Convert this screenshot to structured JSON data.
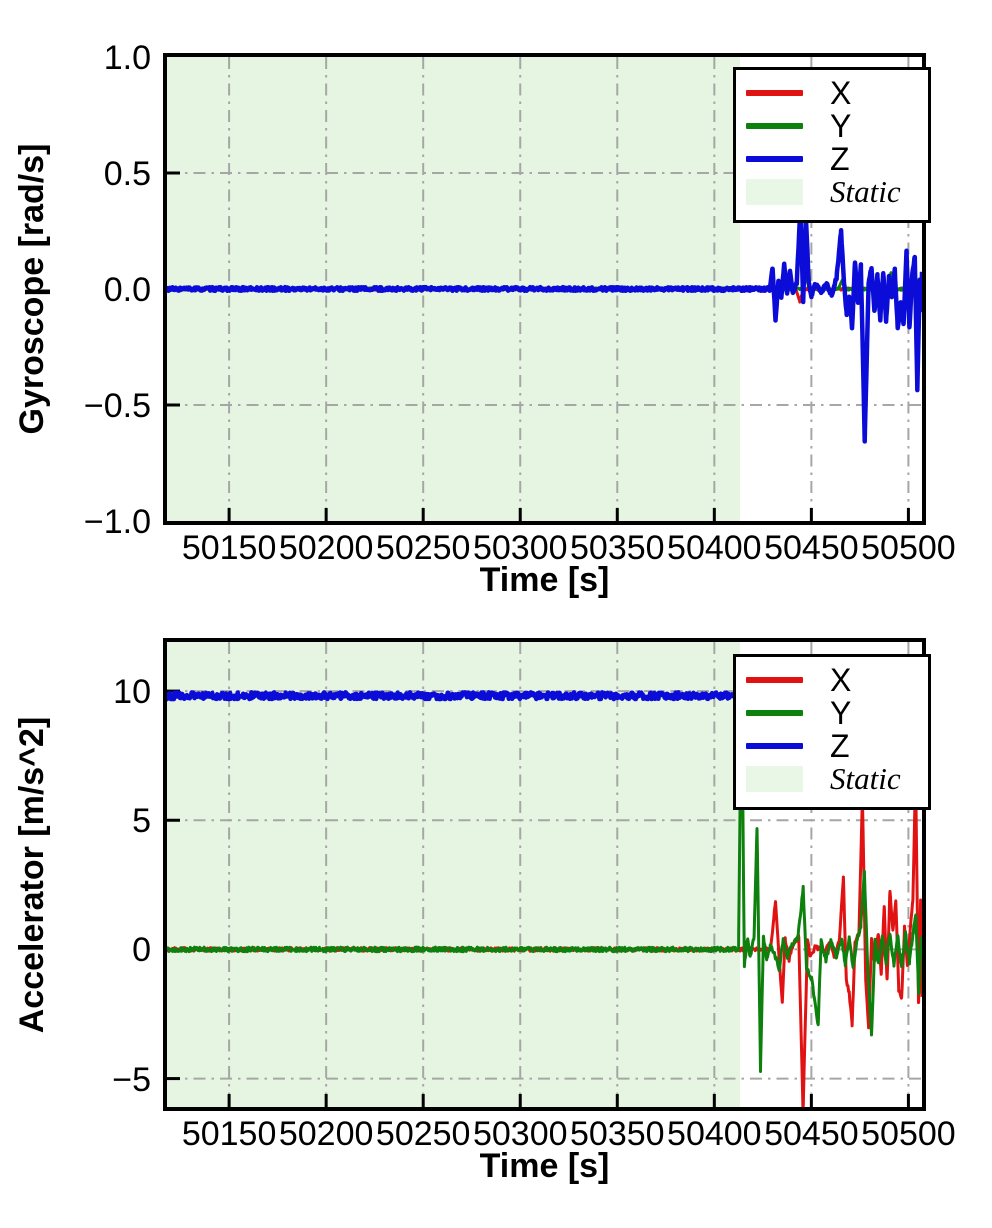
{
  "figure_background": "#ffffff",
  "colors": {
    "x_series": "#e01212",
    "y_series": "#0d800d",
    "z_series": "#0c0cd8",
    "static_fill": "#e6f5e2",
    "legend_static_fill": "#e9f7e6",
    "grid": "#a6a6a6",
    "spine": "#000000"
  },
  "legend": {
    "items": [
      {
        "label": "X",
        "swatch": "line",
        "color": "#e01212"
      },
      {
        "label": "Y",
        "swatch": "line",
        "color": "#0d800d"
      },
      {
        "label": "Z",
        "swatch": "line",
        "color": "#0c0cd8"
      },
      {
        "label": "Static",
        "swatch": "patch",
        "color": "#e9f7e6"
      }
    ],
    "position": "upper right"
  },
  "chart_data": [
    {
      "type": "line",
      "title": "",
      "xlabel": "Time [s]",
      "ylabel": "Gyroscope [rad/s]",
      "xlim": [
        50118,
        50507
      ],
      "ylim": [
        -1.0,
        1.0
      ],
      "xticks": [
        50150,
        50200,
        50250,
        50300,
        50350,
        50400,
        50450,
        50500
      ],
      "xtick_labels": [
        "50150",
        "50200",
        "50250",
        "50300",
        "50350",
        "50400",
        "50450",
        "50500"
      ],
      "yticks": [
        1.0,
        0.5,
        0.0,
        -0.5,
        -1.0
      ],
      "ytick_labels": [
        "1.0",
        "0.5",
        "0.0",
        "−0.5",
        "−1.0"
      ],
      "grid": true,
      "grid_style": "dash-dot",
      "legend_position": "upper right",
      "static_region": {
        "start": 50118,
        "end": 50413,
        "label": "Static"
      },
      "series": [
        {
          "name": "X",
          "color": "#e01212",
          "width": 3,
          "noise": 0.005,
          "seed": 11,
          "keypoints": [
            [
              50118,
              0
            ],
            [
              50442,
              0
            ],
            [
              50444,
              -0.055
            ],
            [
              50446,
              0
            ],
            [
              50489,
              0
            ],
            [
              50491,
              -0.035
            ],
            [
              50492.5,
              0
            ],
            [
              50507,
              0
            ]
          ]
        },
        {
          "name": "Y",
          "color": "#0d800d",
          "width": 3,
          "noise": 0.005,
          "seed": 22,
          "keypoints": [
            [
              50118,
              0
            ],
            [
              50445,
              0
            ],
            [
              50447,
              0.05
            ],
            [
              50449,
              0
            ],
            [
              50464,
              0
            ],
            [
              50466,
              0.04
            ],
            [
              50468,
              0
            ],
            [
              50489,
              0
            ],
            [
              50491,
              0.07
            ],
            [
              50493,
              0
            ],
            [
              50504,
              0
            ],
            [
              50505.5,
              0.04
            ],
            [
              50507,
              0.01
            ]
          ]
        },
        {
          "name": "Z",
          "color": "#0c0cd8",
          "width": 4.5,
          "noise": 0.008,
          "seed": 33,
          "keypoints": [
            [
              50118,
              0
            ],
            [
              50428.5,
              0
            ],
            [
              50430,
              0.09
            ],
            [
              50431.5,
              -0.13
            ],
            [
              50433,
              0.03
            ],
            [
              50434.5,
              -0.03
            ],
            [
              50436,
              0.11
            ],
            [
              50437.5,
              -0.02
            ],
            [
              50439,
              0.07
            ],
            [
              50440.5,
              -0.02
            ],
            [
              50442.5,
              0.03
            ],
            [
              50444.3,
              0.35
            ],
            [
              50445.8,
              -0.05
            ],
            [
              50447.2,
              0.31
            ],
            [
              50448.6,
              0.03
            ],
            [
              50450,
              -0.03
            ],
            [
              50452,
              0.02
            ],
            [
              50455,
              -0.01
            ],
            [
              50458,
              0.02
            ],
            [
              50460.5,
              -0.03
            ],
            [
              50463,
              0.05
            ],
            [
              50465.3,
              0.25
            ],
            [
              50466.8,
              0.03
            ],
            [
              50468.2,
              -0.11
            ],
            [
              50469.6,
              -0.03
            ],
            [
              50471,
              -0.17
            ],
            [
              50472.5,
              0.12
            ],
            [
              50474,
              -0.06
            ],
            [
              50475.5,
              0.1
            ],
            [
              50477.5,
              -0.65
            ],
            [
              50479.5,
              0.03
            ],
            [
              50481,
              0.09
            ],
            [
              50482.5,
              -0.1
            ],
            [
              50484,
              0.06
            ],
            [
              50485.5,
              -0.13
            ],
            [
              50487,
              0.07
            ],
            [
              50488.5,
              -0.14
            ],
            [
              50490,
              0.05
            ],
            [
              50491.5,
              -0.03
            ],
            [
              50493,
              0.08
            ],
            [
              50494.5,
              -0.17
            ],
            [
              50496,
              -0.06
            ],
            [
              50497.5,
              -0.15
            ],
            [
              50499,
              0.16
            ],
            [
              50500.5,
              -0.17
            ],
            [
              50502,
              0.06
            ],
            [
              50503.3,
              0.14
            ],
            [
              50504.6,
              -0.43
            ],
            [
              50505.8,
              0.03
            ],
            [
              50506.5,
              -0.09
            ],
            [
              50507,
              0.07
            ]
          ]
        }
      ]
    },
    {
      "type": "line",
      "title": "",
      "xlabel": "Time [s]",
      "ylabel": "Accelerator [m/s^2]",
      "xlim": [
        50118,
        50507
      ],
      "ylim": [
        -6.1,
        11.9
      ],
      "xticks": [
        50150,
        50200,
        50250,
        50300,
        50350,
        50400,
        50450,
        50500
      ],
      "xtick_labels": [
        "50150",
        "50200",
        "50250",
        "50300",
        "50350",
        "50400",
        "50450",
        "50500"
      ],
      "yticks": [
        10,
        5,
        0,
        -5
      ],
      "ytick_labels": [
        "10",
        "5",
        "0",
        "−5"
      ],
      "grid": true,
      "grid_style": "dash-dot",
      "legend_position": "upper right",
      "static_region": {
        "start": 50118,
        "end": 50413,
        "label": "Static"
      },
      "series": [
        {
          "name": "X",
          "color": "#e01212",
          "width": 3,
          "noise": 0.07,
          "seed": 44,
          "keypoints": [
            [
              50118,
              0
            ],
            [
              50429,
              0
            ],
            [
              50431.5,
              1.9
            ],
            [
              50433.5,
              -0.5
            ],
            [
              50435,
              -2.0
            ],
            [
              50436.5,
              0.4
            ],
            [
              50438.5,
              -0.4
            ],
            [
              50440.5,
              0.2
            ],
            [
              50443.5,
              0.5
            ],
            [
              50445.7,
              -6.3
            ],
            [
              50448,
              0.4
            ],
            [
              50449.5,
              -0.3
            ],
            [
              50452,
              0.1
            ],
            [
              50457,
              -0.1
            ],
            [
              50459.5,
              0.3
            ],
            [
              50462,
              -0.3
            ],
            [
              50464.5,
              0.4
            ],
            [
              50466.5,
              2.8
            ],
            [
              50468,
              -1.2
            ],
            [
              50469.5,
              -1.7
            ],
            [
              50471,
              -2.9
            ],
            [
              50472.5,
              0.3
            ],
            [
              50474.5,
              0.6
            ],
            [
              50476.3,
              5.9
            ],
            [
              50478,
              -1.1
            ],
            [
              50479.5,
              -3.1
            ],
            [
              50481,
              0.4
            ],
            [
              50482.5,
              -0.5
            ],
            [
              50484.5,
              0.6
            ],
            [
              50486,
              -0.9
            ],
            [
              50487.5,
              1.7
            ],
            [
              50489,
              -1.2
            ],
            [
              50490.5,
              2.3
            ],
            [
              50492,
              0.7
            ],
            [
              50493.5,
              1.9
            ],
            [
              50495,
              -1.6
            ],
            [
              50496.5,
              -1.9
            ],
            [
              50498,
              0.9
            ],
            [
              50499.5,
              -0.6
            ],
            [
              50501,
              0.8
            ],
            [
              50502.3,
              1.9
            ],
            [
              50503.7,
              6.9
            ],
            [
              50505.2,
              -2.1
            ],
            [
              50506.3,
              1.9
            ],
            [
              50507,
              -1.9
            ]
          ]
        },
        {
          "name": "Y",
          "color": "#0d800d",
          "width": 3,
          "noise": 0.09,
          "seed": 55,
          "keypoints": [
            [
              50118,
              0
            ],
            [
              50412.5,
              0
            ],
            [
              50414,
              10.8
            ],
            [
              50415.5,
              -0.6
            ],
            [
              50417,
              0.4
            ],
            [
              50418.5,
              -0.3
            ],
            [
              50420.5,
              0.5
            ],
            [
              50422,
              4.75
            ],
            [
              50423.8,
              -4.65
            ],
            [
              50425.3,
              0.5
            ],
            [
              50427,
              -0.4
            ],
            [
              50429,
              0.2
            ],
            [
              50431.5,
              -0.3
            ],
            [
              50433.5,
              -0.8
            ],
            [
              50435.5,
              0.4
            ],
            [
              50437.5,
              -0.3
            ],
            [
              50440,
              0.2
            ],
            [
              50443,
              0.4
            ],
            [
              50445.8,
              2.4
            ],
            [
              50447.5,
              -0.7
            ],
            [
              50450,
              -1.1
            ],
            [
              50453.5,
              -2.9
            ],
            [
              50455,
              0.3
            ],
            [
              50457.5,
              -0.4
            ],
            [
              50460,
              0.3
            ],
            [
              50463,
              -0.3
            ],
            [
              50465.5,
              0.4
            ],
            [
              50467.5,
              -0.6
            ],
            [
              50469.5,
              0.5
            ],
            [
              50471.5,
              -0.7
            ],
            [
              50473.5,
              0.4
            ],
            [
              50475.5,
              0.9
            ],
            [
              50477.3,
              3.05
            ],
            [
              50479,
              -0.6
            ],
            [
              50481,
              -3.3
            ],
            [
              50482.8,
              0.4
            ],
            [
              50484.5,
              -0.6
            ],
            [
              50486.5,
              0.5
            ],
            [
              50488.5,
              -0.5
            ],
            [
              50490.5,
              0.6
            ],
            [
              50492.5,
              -0.6
            ],
            [
              50494.5,
              0.5
            ],
            [
              50496.5,
              -0.7
            ],
            [
              50498.5,
              0.6
            ],
            [
              50500.5,
              -0.5
            ],
            [
              50502.5,
              0.7
            ],
            [
              50503.8,
              1.4
            ],
            [
              50505.3,
              -1.8
            ],
            [
              50506.5,
              0.5
            ],
            [
              50507,
              -0.3
            ]
          ]
        },
        {
          "name": "Z",
          "color": "#0c0cd8",
          "width": 4.5,
          "noise": 0.13,
          "seed": 66,
          "keypoints": [
            [
              50118,
              9.82
            ],
            [
              50507,
              9.82
            ]
          ]
        }
      ]
    }
  ]
}
